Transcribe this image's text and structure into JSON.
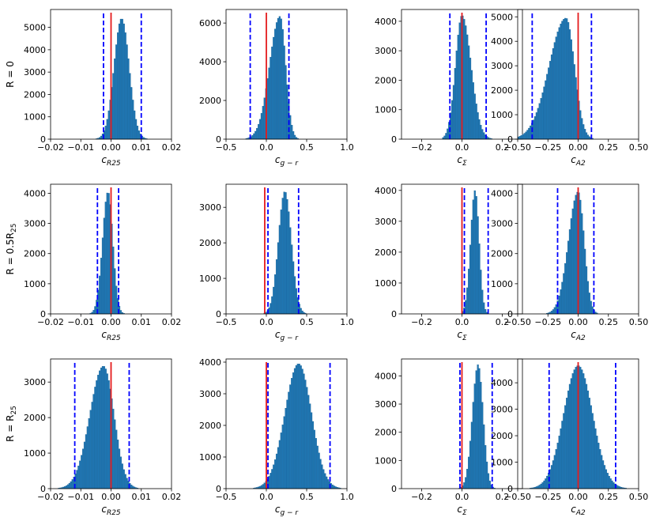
{
  "chart_data": [
    {
      "type": "bar",
      "row": 0,
      "col": 0,
      "row_label": "R = 0",
      "xlabel": "c_R25",
      "xsub": "R25",
      "xlim": [
        -0.02,
        0.02
      ],
      "ylim": [
        0,
        5800
      ],
      "xticks": [
        -0.02,
        -0.01,
        0.0,
        0.01,
        0.02
      ],
      "xtick_labels": [
        "−0.02",
        "−0.01",
        "0.00",
        "0.01",
        "0.02"
      ],
      "yticks": [
        0,
        1000,
        2000,
        3000,
        4000,
        5000
      ],
      "ytick_labels": [
        "0",
        "1000",
        "2000",
        "3000",
        "4000",
        "5000"
      ],
      "peak_x": 0.0035,
      "peak": 5400,
      "sigma_left": 0.0025,
      "sigma_right": 0.0025,
      "support": [
        -0.0065,
        0.0165
      ],
      "red_line": 0.0,
      "blue_lines": [
        -0.0025,
        0.01
      ]
    },
    {
      "type": "bar",
      "row": 0,
      "col": 1,
      "xlabel": "c_g-r",
      "xsub": "g − r",
      "xlim": [
        -0.5,
        1.0
      ],
      "ylim": [
        0,
        6700
      ],
      "xticks": [
        -0.5,
        0.0,
        0.5,
        1.0
      ],
      "xtick_labels": [
        "−0.5",
        "0.0",
        "0.5",
        "1.0"
      ],
      "yticks": [
        0,
        2000,
        4000,
        6000
      ],
      "ytick_labels": [
        "0",
        "2000",
        "4000",
        "6000"
      ],
      "peak_x": 0.17,
      "peak": 6350,
      "sigma_left": 0.13,
      "sigma_right": 0.07,
      "support": [
        -0.35,
        0.4
      ],
      "red_line": 0.0,
      "blue_lines": [
        -0.2,
        0.28
      ]
    },
    {
      "type": "bar",
      "row": 0,
      "col": 2,
      "xlabel": "c_Σ",
      "xsub": "Σ",
      "xlim": [
        -0.3,
        0.3
      ],
      "ylim": [
        0,
        4400
      ],
      "xticks": [
        -0.2,
        0.0,
        0.2
      ],
      "xtick_labels": [
        "−0.2",
        "0.0",
        "0.2"
      ],
      "yticks": [
        0,
        1000,
        2000,
        3000,
        4000
      ],
      "ytick_labels": [
        "0",
        "1000",
        "2000",
        "3000",
        "4000"
      ],
      "peak_x": 0.0,
      "peak": 4200,
      "sigma_left": 0.032,
      "sigma_right": 0.045,
      "support": [
        -0.1,
        0.18
      ],
      "red_line": 0.0,
      "blue_lines": [
        -0.06,
        0.12
      ]
    },
    {
      "type": "bar",
      "row": 0,
      "col": 3,
      "xlabel": "c_A2",
      "xsub": "A2",
      "xlim": [
        -0.5,
        0.5
      ],
      "ylim": [
        0,
        5300
      ],
      "xticks": [
        -0.5,
        -0.25,
        0.0,
        0.25,
        0.5
      ],
      "xtick_labels": [
        "−0.50",
        "−0.25",
        "0.00",
        "0.25",
        "0.50"
      ],
      "yticks": [
        0,
        1000,
        2000,
        3000,
        4000,
        5000
      ],
      "ytick_labels": [
        "0",
        "1000",
        "2000",
        "3000",
        "4000",
        "5000"
      ],
      "peak_x": -0.1,
      "peak": 4950,
      "sigma_left": 0.14,
      "sigma_right": 0.07,
      "support": [
        -0.5,
        0.2
      ],
      "red_line": 0.0,
      "blue_lines": [
        -0.38,
        0.11
      ]
    },
    {
      "type": "bar",
      "row": 1,
      "col": 0,
      "row_label": "R = 0.5R25",
      "xlabel": "c_R25",
      "xsub": "R25",
      "xlim": [
        -0.02,
        0.02
      ],
      "ylim": [
        0,
        4300
      ],
      "xticks": [
        -0.02,
        -0.01,
        0.0,
        0.01,
        0.02
      ],
      "xtick_labels": [
        "−0.02",
        "−0.01",
        "0.00",
        "0.01",
        "0.02"
      ],
      "yticks": [
        0,
        1000,
        2000,
        3000,
        4000
      ],
      "ytick_labels": [
        "0",
        "1000",
        "2000",
        "3000",
        "4000"
      ],
      "peak_x": -0.001,
      "peak": 4050,
      "sigma_left": 0.0018,
      "sigma_right": 0.0016,
      "support": [
        -0.0085,
        0.006
      ],
      "red_line": 0.0,
      "blue_lines": [
        -0.0045,
        0.0025
      ]
    },
    {
      "type": "bar",
      "row": 1,
      "col": 1,
      "xlabel": "c_g-r",
      "xsub": "g − r",
      "xlim": [
        -0.5,
        1.0
      ],
      "ylim": [
        0,
        3650
      ],
      "xticks": [
        -0.5,
        0.0,
        0.5,
        1.0
      ],
      "xtick_labels": [
        "−0.5",
        "0.0",
        "0.5",
        "1.0"
      ],
      "yticks": [
        0,
        1000,
        2000,
        3000
      ],
      "ytick_labels": [
        "0",
        "1000",
        "2000",
        "3000"
      ],
      "peak_x": 0.23,
      "peak": 3450,
      "sigma_left": 0.08,
      "sigma_right": 0.08,
      "support": [
        -0.05,
        0.5
      ],
      "red_line": -0.02,
      "blue_lines": [
        0.02,
        0.4
      ]
    },
    {
      "type": "bar",
      "row": 1,
      "col": 2,
      "xlabel": "c_Σ",
      "xsub": "Σ",
      "xlim": [
        -0.3,
        0.3
      ],
      "ylim": [
        0,
        4200
      ],
      "xticks": [
        -0.2,
        0.0,
        0.2
      ],
      "xtick_labels": [
        "−0.2",
        "0.0",
        "0.2"
      ],
      "yticks": [
        0,
        1000,
        2000,
        3000,
        4000
      ],
      "ytick_labels": [
        "0",
        "1000",
        "2000",
        "3000",
        "4000"
      ],
      "peak_x": 0.065,
      "peak": 4000,
      "sigma_left": 0.022,
      "sigma_right": 0.02,
      "support": [
        0.0,
        0.14
      ],
      "red_line": 0.0,
      "blue_lines": [
        0.012,
        0.13
      ]
    },
    {
      "type": "bar",
      "row": 1,
      "col": 3,
      "xlabel": "c_A2",
      "xsub": "A2",
      "xlim": [
        -0.5,
        0.5
      ],
      "ylim": [
        0,
        4300
      ],
      "xticks": [
        -0.5,
        -0.25,
        0.0,
        0.25,
        0.5
      ],
      "xtick_labels": [
        "−0.50",
        "−0.25",
        "0.00",
        "0.25",
        "0.50"
      ],
      "yticks": [
        0,
        1000,
        2000,
        3000,
        4000
      ],
      "ytick_labels": [
        "0",
        "1000",
        "2000",
        "3000",
        "4000"
      ],
      "peak_x": 0.0,
      "peak": 4050,
      "sigma_left": 0.08,
      "sigma_right": 0.05,
      "support": [
        -0.35,
        0.22
      ],
      "red_line": 0.0,
      "blue_lines": [
        -0.17,
        0.13
      ]
    },
    {
      "type": "bar",
      "row": 2,
      "col": 0,
      "row_label": "R = R25",
      "xlabel": "c_R25",
      "xsub": "R25",
      "xlim": [
        -0.02,
        0.02
      ],
      "ylim": [
        0,
        3650
      ],
      "xticks": [
        -0.02,
        -0.01,
        0.0,
        0.01,
        0.02
      ],
      "xtick_labels": [
        "−0.02",
        "−0.01",
        "0.00",
        "0.01",
        "0.02"
      ],
      "yticks": [
        0,
        1000,
        2000,
        3000
      ],
      "ytick_labels": [
        "0",
        "1000",
        "2000",
        "3000"
      ],
      "peak_x": -0.0025,
      "peak": 3450,
      "sigma_left": 0.0045,
      "sigma_right": 0.0035,
      "support": [
        -0.019,
        0.009
      ],
      "red_line": 0.0,
      "blue_lines": [
        -0.012,
        0.006
      ]
    },
    {
      "type": "bar",
      "row": 2,
      "col": 1,
      "xlabel": "c_g-r",
      "xsub": "g − r",
      "xlim": [
        -0.5,
        1.0
      ],
      "ylim": [
        0,
        4100
      ],
      "xticks": [
        -0.5,
        0.0,
        0.5,
        1.0
      ],
      "xtick_labels": [
        "−0.5",
        "0.0",
        "0.5",
        "1.0"
      ],
      "yticks": [
        0,
        1000,
        2000,
        3000,
        4000
      ],
      "ytick_labels": [
        "0",
        "1000",
        "2000",
        "3000",
        "4000"
      ],
      "peak_x": 0.4,
      "peak": 3950,
      "sigma_left": 0.17,
      "sigma_right": 0.16,
      "support": [
        -0.2,
        1.0
      ],
      "red_line": 0.0,
      "blue_lines": [
        0.02,
        0.79
      ]
    },
    {
      "type": "bar",
      "row": 2,
      "col": 2,
      "xlabel": "c_Σ",
      "xsub": "Σ",
      "xlim": [
        -0.3,
        0.3
      ],
      "ylim": [
        0,
        4600
      ],
      "xticks": [
        -0.2,
        0.0,
        0.2
      ],
      "xtick_labels": [
        "−0.2",
        "0.0",
        "0.2"
      ],
      "yticks": [
        0,
        1000,
        2000,
        3000,
        4000
      ],
      "ytick_labels": [
        "0",
        "1000",
        "2000",
        "3000",
        "4000"
      ],
      "peak_x": 0.08,
      "peak": 4400,
      "sigma_left": 0.028,
      "sigma_right": 0.025,
      "support": [
        -0.05,
        0.18
      ],
      "red_line": 0.0,
      "blue_lines": [
        -0.01,
        0.15
      ]
    },
    {
      "type": "bar",
      "row": 2,
      "col": 3,
      "xlabel": "c_A2",
      "xsub": "A2",
      "xlim": [
        -0.5,
        0.5
      ],
      "ylim": [
        0,
        4900
      ],
      "xticks": [
        -0.5,
        -0.25,
        0.0,
        0.25,
        0.5
      ],
      "xtick_labels": [
        "−0.50",
        "−0.25",
        "0.00",
        "0.25",
        "0.50"
      ],
      "yticks": [
        0,
        1000,
        2000,
        3000,
        4000
      ],
      "ytick_labels": [
        "0",
        "1000",
        "2000",
        "3000",
        "4000"
      ],
      "peak_x": 0.0,
      "peak": 4650,
      "sigma_left": 0.12,
      "sigma_right": 0.12,
      "support": [
        -0.5,
        0.5
      ],
      "red_line": 0.0,
      "blue_lines": [
        -0.24,
        0.31
      ]
    }
  ],
  "colors": {
    "bar": "#1f77b4",
    "bar_edge": "#1a5f91",
    "red": "#e41a1c",
    "blue": "#0000ff"
  }
}
